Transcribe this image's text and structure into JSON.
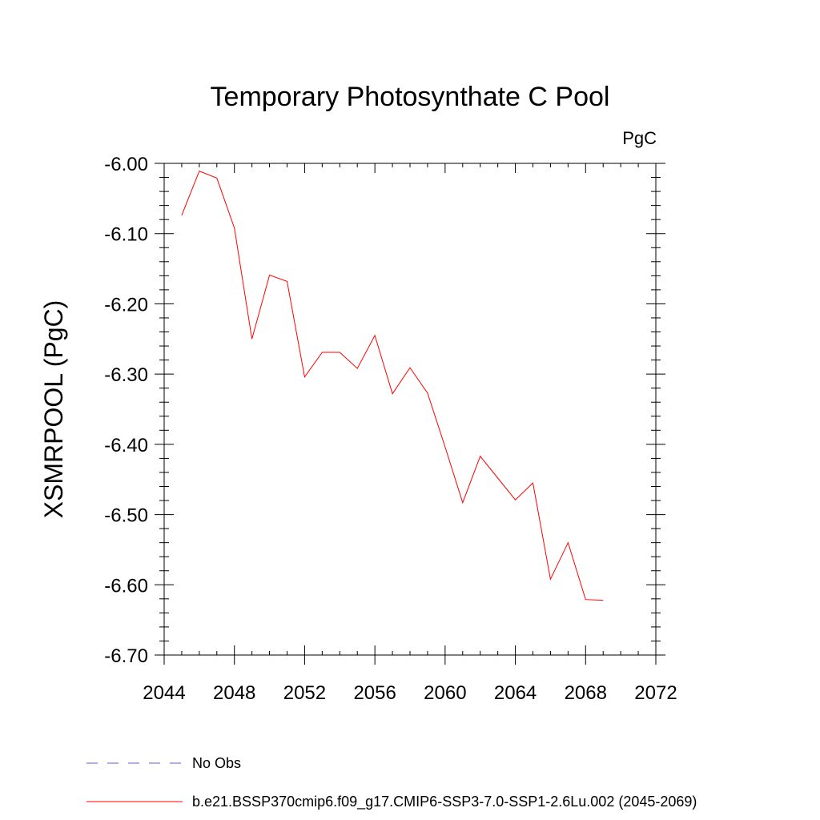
{
  "chart_data": {
    "type": "line",
    "title": "Temporary Photosynthate C Pool",
    "units_label": "PgC",
    "ylabel": "XSMRPOOL  (PgC)",
    "xlabel": "",
    "xlim": [
      2044,
      2072
    ],
    "ylim": [
      -6.7,
      -6.0
    ],
    "x_ticks": [
      2044,
      2048,
      2052,
      2056,
      2060,
      2064,
      2068,
      2072
    ],
    "x_tick_labels": [
      "2044",
      "2048",
      "2052",
      "2056",
      "2060",
      "2064",
      "2068",
      "2072"
    ],
    "y_ticks": [
      -6.0,
      -6.1,
      -6.2,
      -6.3,
      -6.4,
      -6.5,
      -6.6,
      -6.7
    ],
    "y_tick_labels": [
      "-6.00",
      "-6.10",
      "-6.20",
      "-6.30",
      "-6.40",
      "-6.50",
      "-6.60",
      "-6.70"
    ],
    "grid": false,
    "legend_position": "bottom",
    "series": [
      {
        "name": "b.e21.BSSP370cmip6.f09_g17.CMIP6-SSP3-7.0-SSP1-2.6Lu.002 (2045-2069)",
        "color": "#ff0000",
        "style": "solid",
        "x": [
          2045,
          2046,
          2047,
          2048,
          2049,
          2050,
          2051,
          2052,
          2053,
          2054,
          2055,
          2056,
          2057,
          2058,
          2059,
          2060,
          2061,
          2062,
          2063,
          2064,
          2065,
          2066,
          2067,
          2068,
          2069
        ],
        "y": [
          -6.074,
          -6.011,
          -6.021,
          -6.092,
          -6.25,
          -6.159,
          -6.168,
          -6.304,
          -6.269,
          -6.269,
          -6.292,
          -6.245,
          -6.328,
          -6.291,
          -6.327,
          -6.404,
          -6.483,
          -6.417,
          -6.448,
          -6.479,
          -6.455,
          -6.592,
          -6.54,
          -6.621,
          -6.622
        ]
      }
    ],
    "legend": [
      {
        "label": "No Obs",
        "color": "#6a5acd",
        "style": "dashed"
      },
      {
        "label": "b.e21.BSSP370cmip6.f09_g17.CMIP6-SSP3-7.0-SSP1-2.6Lu.002 (2045-2069)",
        "color": "#ff0000",
        "style": "solid"
      }
    ]
  }
}
